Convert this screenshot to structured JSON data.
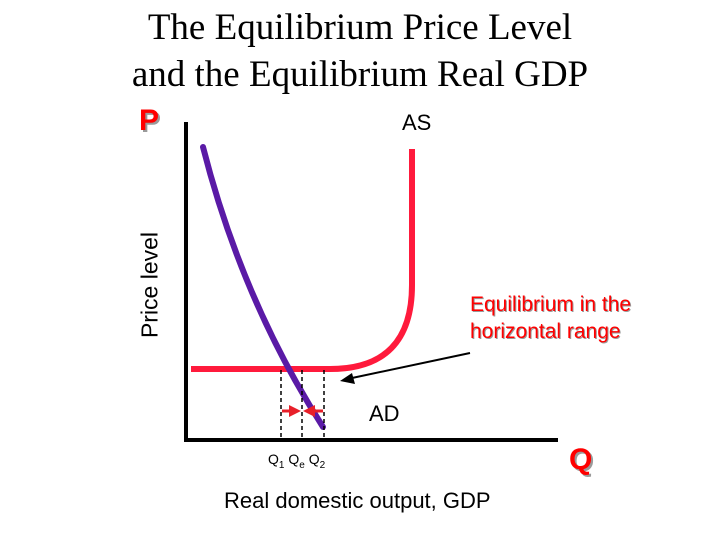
{
  "title_line1": "The Equilibrium Price Level",
  "title_line2": "and the Equilibrium Real GDP",
  "y_axis_symbol": "P",
  "x_axis_symbol": "Q",
  "y_axis_label": "Price level",
  "x_axis_label": "Real domestic output, GDP",
  "as_label": "AS",
  "ad_label": "AD",
  "annotation_line1": "Equilibrium in the",
  "annotation_line2": "horizontal range",
  "q_ticks": {
    "q1": "Q",
    "q1_sub": "1",
    "qe": "Q",
    "qe_sub": "e",
    "q2": "Q",
    "q2_sub": "2"
  },
  "colors": {
    "as_curve": "#ff1a3c",
    "ad_curve": "#5a1aa6",
    "arrows": "#e8202a",
    "emphasis_text": "#ff0000"
  },
  "icons": {
    "pointer": "arrow-icon",
    "left_arrow": "arrow-right-icon",
    "right_arrow": "arrow-left-icon"
  }
}
